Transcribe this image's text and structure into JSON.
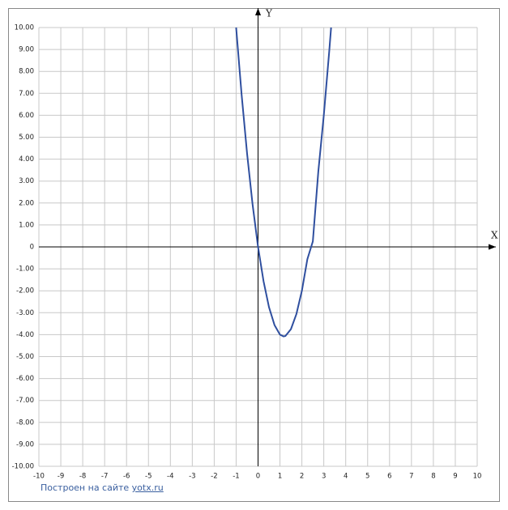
{
  "chart_data": {
    "type": "line",
    "xlabel": "X",
    "ylabel": "Y",
    "x": [
      -1,
      -0.75,
      -0.5,
      -0.25,
      0,
      0.25,
      0.5,
      0.75,
      1,
      1.1667,
      1.25,
      1.5,
      1.75,
      2,
      2.25,
      2.5,
      2.75,
      3,
      3.25,
      3.333
    ],
    "values": [
      10,
      6.94,
      4.25,
      1.94,
      0,
      -1.56,
      -2.75,
      -3.56,
      -4,
      -4.08,
      -4.06,
      -3.75,
      -3.06,
      -2,
      -0.56,
      0.25,
      3.44,
      6,
      8.94,
      10
    ],
    "color": "#2f4f9f",
    "xlim": [
      -10,
      10
    ],
    "ylim": [
      -10,
      10
    ],
    "xticks": [
      -10,
      -9,
      -8,
      -7,
      -6,
      -5,
      -4,
      -3,
      -2,
      -1,
      0,
      1,
      2,
      3,
      4,
      5,
      6,
      7,
      8,
      9,
      10
    ],
    "yticks": [
      {
        "value": 10,
        "label": "10.00"
      },
      {
        "value": 9,
        "label": "9.00"
      },
      {
        "value": 8,
        "label": "8.00"
      },
      {
        "value": 7,
        "label": "7.00"
      },
      {
        "value": 6,
        "label": "6.00"
      },
      {
        "value": 5,
        "label": "5.00"
      },
      {
        "value": 4,
        "label": "4.00"
      },
      {
        "value": 3,
        "label": "3.00"
      },
      {
        "value": 2,
        "label": "2.00"
      },
      {
        "value": 1,
        "label": "1.00"
      },
      0,
      {
        "value": -1,
        "label": "-1.00"
      },
      {
        "value": -2,
        "label": "-2.00"
      },
      {
        "value": -3,
        "label": "-3.00"
      },
      {
        "value": -4,
        "label": "-4.00"
      },
      {
        "value": -5,
        "label": "-5.00"
      },
      {
        "value": -6,
        "label": "-6.00"
      },
      {
        "value": -7,
        "label": "-7.00"
      },
      {
        "value": -8,
        "label": "-8.00"
      },
      {
        "value": -9,
        "label": "-9.00"
      },
      {
        "value": -10,
        "label": "-10.00"
      }
    ],
    "grid": true
  },
  "footer": {
    "text": "Построен на сайте",
    "link": "yotx.ru"
  }
}
